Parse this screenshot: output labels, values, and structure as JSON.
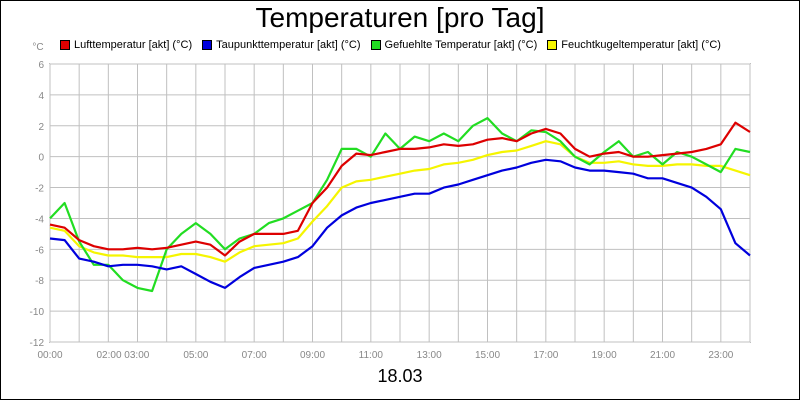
{
  "colors": {
    "luft": "#dd0000",
    "taupunkt": "#0000dd",
    "gefuehlt": "#22dd22",
    "feucht": "#f5f500",
    "grid": "#c0c0c0",
    "tick": "#888888"
  },
  "chart_data": {
    "type": "line",
    "title": "Temperaturen [pro Tag]",
    "xlabel": "18.03",
    "ylabel": "°C",
    "ylim": [
      -12,
      6
    ],
    "yticks": [
      6,
      4,
      2,
      0,
      -2,
      -4,
      -6,
      -8,
      -10,
      -12
    ],
    "xlim": [
      0,
      24
    ],
    "xtick_labels": [
      "00:00",
      "02:00 03:00",
      "05:00",
      "07:00",
      "09:00",
      "11:00",
      "13:00",
      "15:00",
      "17:00",
      "19:00",
      "21:00",
      "23:00"
    ],
    "xtick_hours": [
      0,
      2.5,
      5,
      7,
      9,
      11,
      13,
      15,
      17,
      19,
      21,
      23
    ],
    "grid": true,
    "legend_position": "top",
    "x_hours": [
      0,
      0.5,
      1,
      1.5,
      2,
      2.5,
      3,
      3.5,
      4,
      4.5,
      5,
      5.5,
      6,
      6.5,
      7,
      7.5,
      8,
      8.5,
      9,
      9.5,
      10,
      10.5,
      11,
      11.5,
      12,
      12.5,
      13,
      13.5,
      14,
      14.5,
      15,
      15.5,
      16,
      16.5,
      17,
      17.5,
      18,
      18.5,
      19,
      19.5,
      20,
      20.5,
      21,
      21.5,
      22,
      22.5,
      23,
      23.5,
      24
    ],
    "series": [
      {
        "name": "Lufttemperatur [akt] (°C)",
        "values": [
          -4.4,
          -4.6,
          -5.4,
          -5.8,
          -6.0,
          -6.0,
          -5.9,
          -6.0,
          -5.9,
          -5.7,
          -5.5,
          -5.7,
          -6.4,
          -5.5,
          -5.0,
          -5.0,
          -5.0,
          -4.8,
          -3.0,
          -2.0,
          -0.6,
          0.2,
          0.1,
          0.3,
          0.5,
          0.5,
          0.6,
          0.8,
          0.7,
          0.8,
          1.1,
          1.2,
          1.0,
          1.5,
          1.8,
          1.5,
          0.5,
          0.0,
          0.2,
          0.3,
          0.0,
          0.0,
          0.1,
          0.2,
          0.3,
          0.5,
          0.8,
          2.2,
          1.6
        ]
      },
      {
        "name": "Taupunkttemperatur [akt] (°C)",
        "values": [
          -5.3,
          -5.4,
          -6.6,
          -6.8,
          -7.1,
          -7.0,
          -7.0,
          -7.1,
          -7.3,
          -7.1,
          -7.6,
          -8.1,
          -8.5,
          -7.8,
          -7.2,
          -7.0,
          -6.8,
          -6.5,
          -5.8,
          -4.6,
          -3.8,
          -3.3,
          -3.0,
          -2.8,
          -2.6,
          -2.4,
          -2.4,
          -2.0,
          -1.8,
          -1.5,
          -1.2,
          -0.9,
          -0.7,
          -0.4,
          -0.2,
          -0.3,
          -0.7,
          -0.9,
          -0.9,
          -1.0,
          -1.1,
          -1.4,
          -1.4,
          -1.7,
          -2.0,
          -2.6,
          -3.4,
          -5.6,
          -6.4
        ]
      },
      {
        "name": "Gefuehlte Temperatur [akt] (°C)",
        "values": [
          -4.0,
          -3.0,
          -5.5,
          -7.0,
          -7.0,
          -8.0,
          -8.5,
          -8.7,
          -6.0,
          -5.0,
          -4.3,
          -5.0,
          -6.0,
          -5.3,
          -5.0,
          -4.3,
          -4.0,
          -3.5,
          -3.0,
          -1.5,
          0.5,
          0.5,
          0.0,
          1.5,
          0.5,
          1.3,
          1.0,
          1.5,
          1.0,
          2.0,
          2.5,
          1.5,
          1.0,
          1.7,
          1.6,
          1.0,
          0.0,
          -0.5,
          0.3,
          1.0,
          0.0,
          0.3,
          -0.5,
          0.3,
          0.0,
          -0.5,
          -1.0,
          0.5,
          0.3
        ]
      },
      {
        "name": "Feuchtkugeltemperatur [akt] (°C)",
        "values": [
          -4.6,
          -4.8,
          -5.8,
          -6.2,
          -6.4,
          -6.4,
          -6.5,
          -6.5,
          -6.5,
          -6.3,
          -6.3,
          -6.5,
          -6.8,
          -6.2,
          -5.8,
          -5.7,
          -5.6,
          -5.3,
          -4.2,
          -3.2,
          -2.0,
          -1.6,
          -1.5,
          -1.3,
          -1.1,
          -0.9,
          -0.8,
          -0.5,
          -0.4,
          -0.2,
          0.1,
          0.3,
          0.4,
          0.7,
          1.0,
          0.8,
          0.0,
          -0.4,
          -0.4,
          -0.3,
          -0.5,
          -0.6,
          -0.6,
          -0.5,
          -0.5,
          -0.6,
          -0.6,
          -0.9,
          -1.2
        ]
      }
    ]
  }
}
